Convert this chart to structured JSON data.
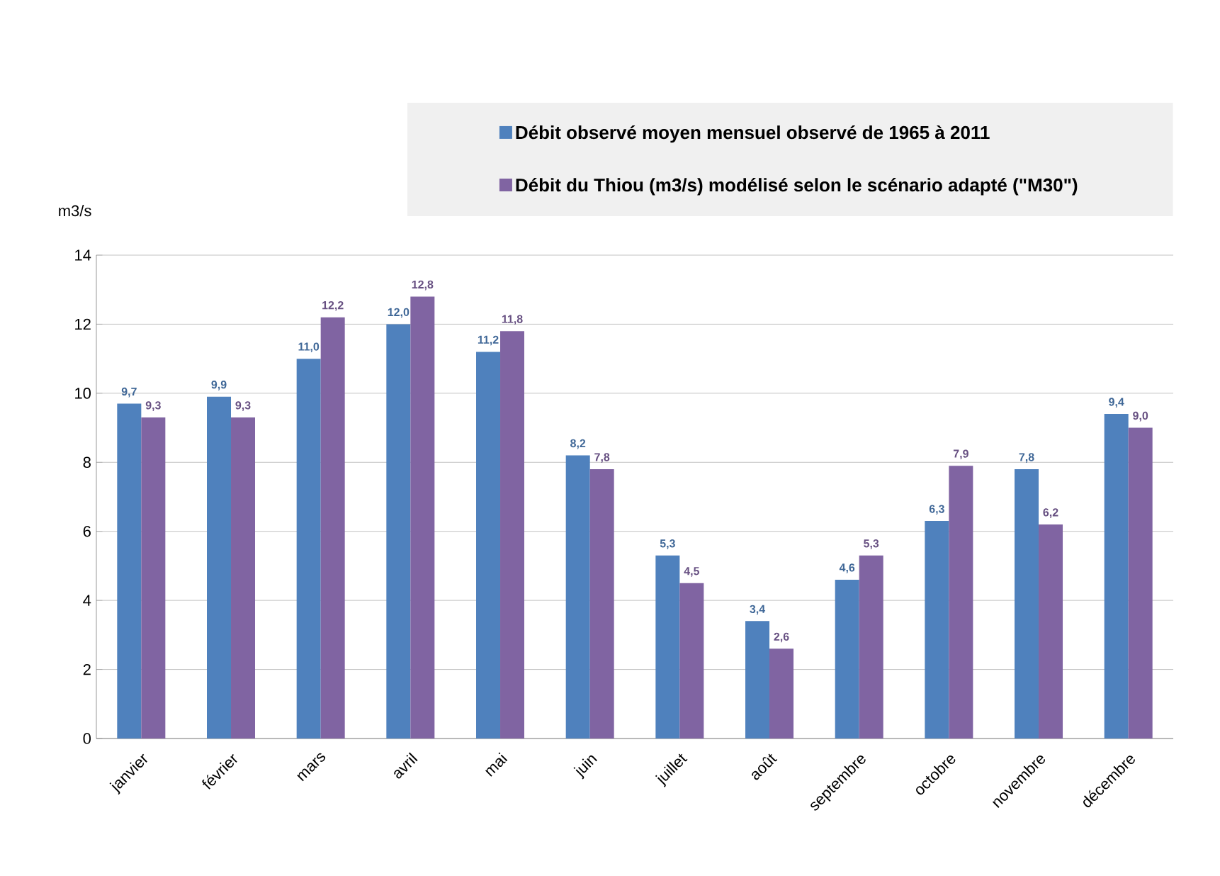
{
  "chart_data": {
    "type": "bar",
    "ylabel": "m3/s",
    "categories": [
      "janvier",
      "février",
      "mars",
      "avril",
      "mai",
      "juin",
      "juillet",
      "août",
      "septembre",
      "octobre",
      "novembre",
      "décembre"
    ],
    "series": [
      {
        "name": "Débit observé moyen mensuel observé de 1965 à 2011",
        "color": "#4f81bd",
        "values": [
          9.7,
          9.9,
          11.0,
          12.0,
          11.2,
          8.2,
          5.3,
          3.4,
          4.6,
          6.3,
          7.8,
          9.4
        ],
        "value_labels": [
          "9,7",
          "9,9",
          "11,0",
          "12,0",
          "11,2",
          "8,2",
          "5,3",
          "3,4",
          "4,6",
          "6,3",
          "7,8",
          "9,4"
        ]
      },
      {
        "name": "Débit du Thiou (m3/s) modélisé selon le scénario adapté (\"M30\")",
        "color": "#8064a2",
        "values": [
          9.3,
          9.3,
          12.2,
          12.8,
          11.8,
          7.8,
          4.5,
          2.6,
          5.3,
          7.9,
          6.2,
          9.0
        ],
        "value_labels": [
          "9,3",
          "9,3",
          "12,2",
          "12,8",
          "11,8",
          "7,8",
          "4,5",
          "2,6",
          "5,3",
          "7,9",
          "6,2",
          "9,0"
        ]
      }
    ],
    "ylim": [
      0,
      14
    ],
    "yticks": [
      0,
      2,
      4,
      6,
      8,
      10,
      12,
      14
    ],
    "grid": "y",
    "legend": "top"
  }
}
